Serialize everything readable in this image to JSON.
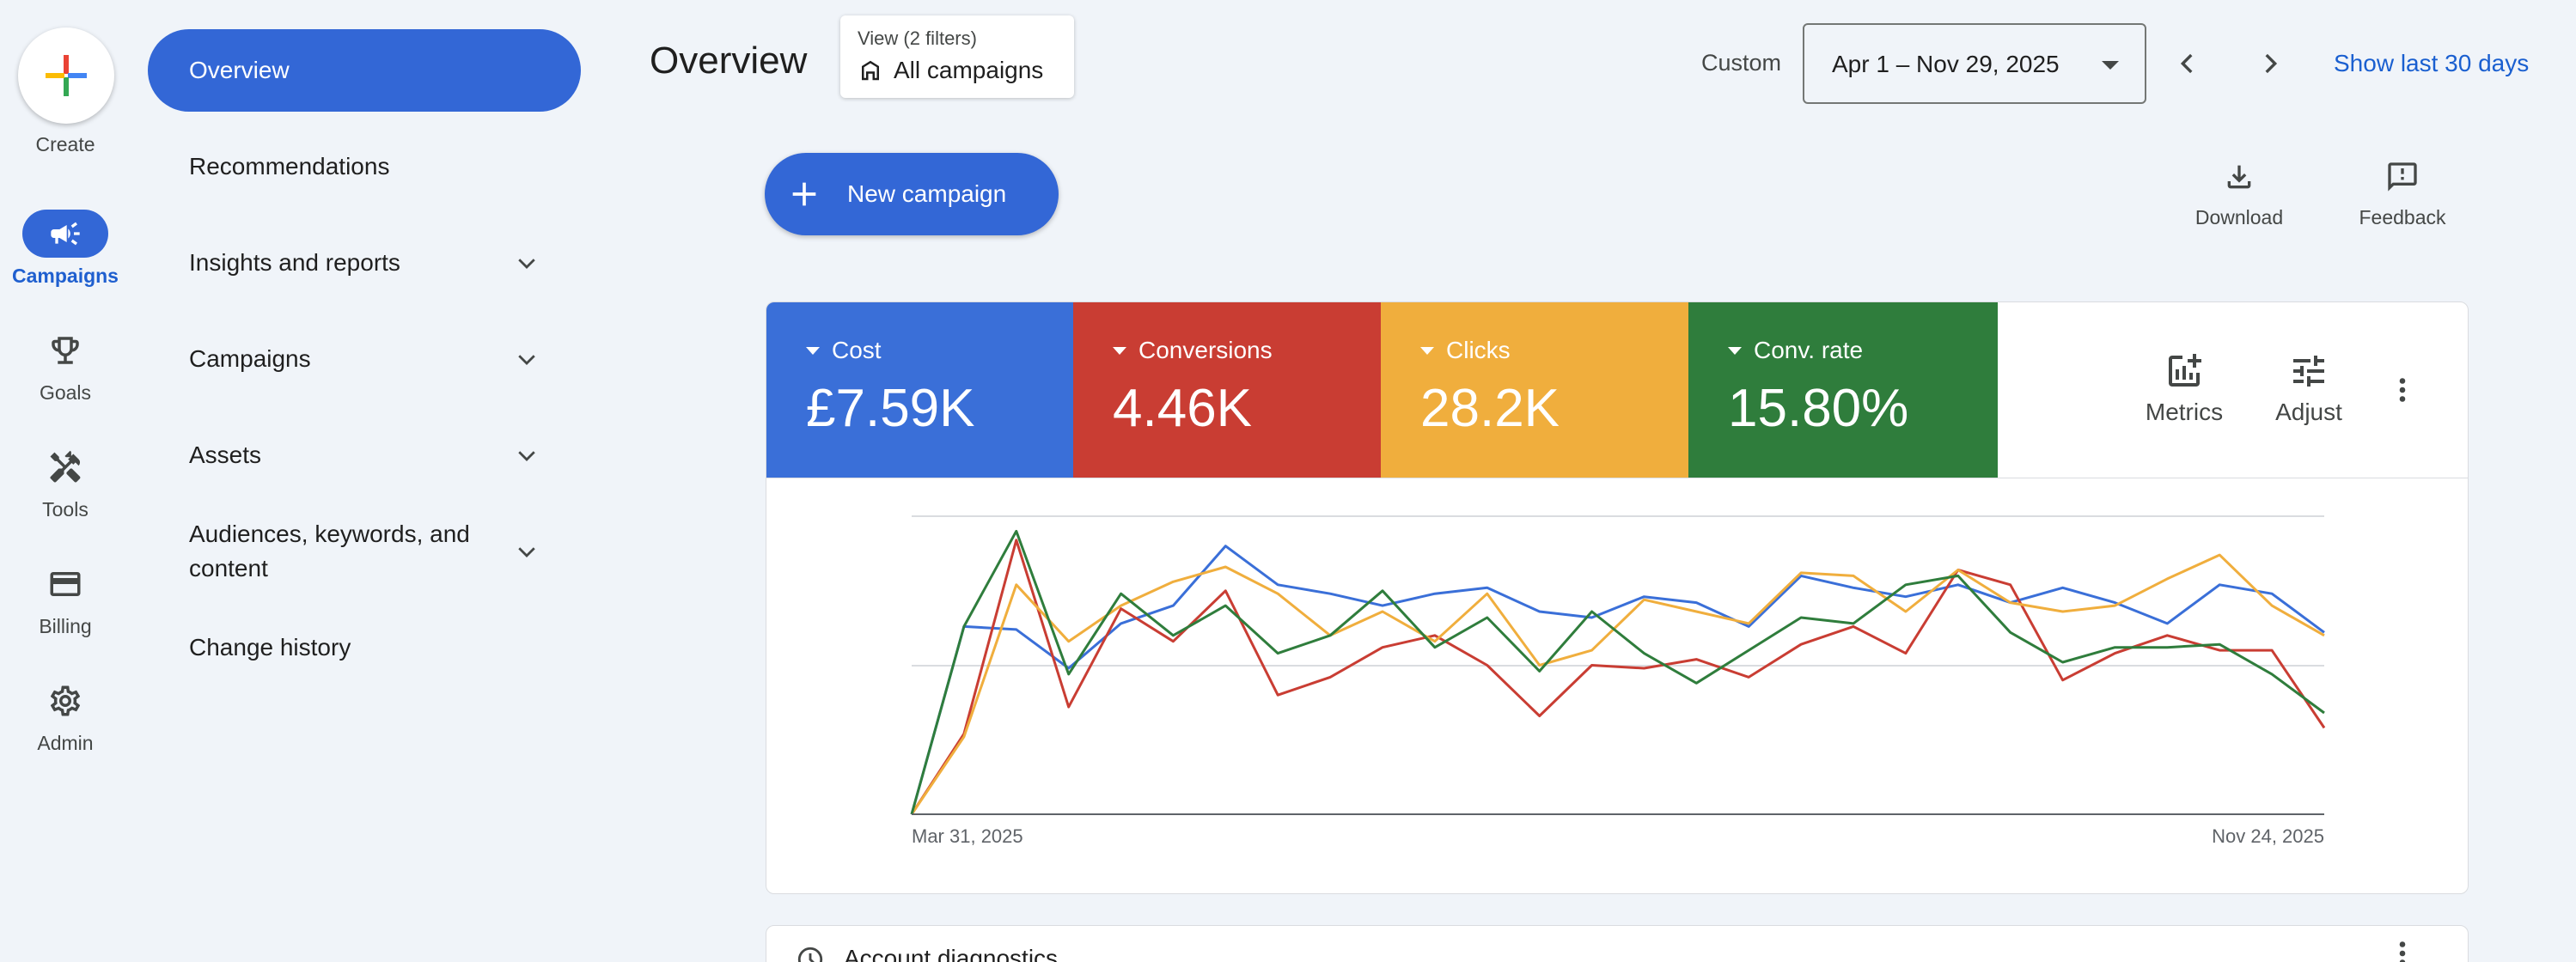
{
  "rail": {
    "create_label": "Create",
    "items": [
      {
        "label": "Campaigns",
        "icon": "megaphone-icon",
        "active": true
      },
      {
        "label": "Goals",
        "icon": "trophy-icon"
      },
      {
        "label": "Tools",
        "icon": "tools-icon"
      },
      {
        "label": "Billing",
        "icon": "credit-card-icon"
      },
      {
        "label": "Admin",
        "icon": "gear-icon"
      }
    ]
  },
  "nav": {
    "items": [
      {
        "label": "Overview",
        "active": true
      },
      {
        "label": "Recommendations"
      },
      {
        "label": "Insights and reports",
        "expandable": true
      },
      {
        "label": "Campaigns",
        "expandable": true
      },
      {
        "label": "Assets",
        "expandable": true
      },
      {
        "label": "Audiences, keywords, and content",
        "expandable": true
      },
      {
        "label": "Change history"
      }
    ]
  },
  "header": {
    "title": "Overview",
    "view_hint": "View (2 filters)",
    "view_value": "All campaigns",
    "custom_label": "Custom",
    "date_range": "Apr 1 – Nov 29, 2025",
    "show_last": "Show last 30 days"
  },
  "actions": {
    "new_campaign": "New campaign",
    "download": "Download",
    "feedback": "Feedback"
  },
  "metrics": [
    {
      "name": "Cost",
      "value": "£7.59K",
      "color": "#3a6fd8"
    },
    {
      "name": "Conversions",
      "value": "4.46K",
      "color": "#c93d33"
    },
    {
      "name": "Clicks",
      "value": "28.2K",
      "color": "#f0ae3d"
    },
    {
      "name": "Conv. rate",
      "value": "15.80%",
      "color": "#2f7d3c"
    }
  ],
  "card_tools": {
    "metrics": "Metrics",
    "adjust": "Adjust"
  },
  "chart_data": {
    "type": "line",
    "x_start_label": "Mar 31, 2025",
    "x_end_label": "Nov 24, 2025",
    "grid": true,
    "ylim": [
      0,
      1
    ],
    "series": [
      {
        "name": "Cost",
        "color": "#3a6fd8",
        "values": [
          0,
          0.63,
          0.62,
          0.49,
          0.64,
          0.7,
          0.9,
          0.77,
          0.74,
          0.7,
          0.74,
          0.76,
          0.68,
          0.66,
          0.73,
          0.71,
          0.63,
          0.8,
          0.76,
          0.73,
          0.77,
          0.71,
          0.76,
          0.71,
          0.64,
          0.77,
          0.74,
          0.61
        ]
      },
      {
        "name": "Conversions",
        "color": "#c93d33",
        "values": [
          0,
          0.27,
          0.92,
          0.36,
          0.69,
          0.58,
          0.75,
          0.4,
          0.46,
          0.56,
          0.6,
          0.5,
          0.33,
          0.5,
          0.49,
          0.52,
          0.46,
          0.57,
          0.63,
          0.54,
          0.82,
          0.77,
          0.45,
          0.54,
          0.6,
          0.55,
          0.55,
          0.29
        ]
      },
      {
        "name": "Clicks",
        "color": "#f0ae3d",
        "values": [
          0,
          0.26,
          0.77,
          0.58,
          0.7,
          0.78,
          0.83,
          0.74,
          0.6,
          0.68,
          0.58,
          0.74,
          0.5,
          0.55,
          0.72,
          0.68,
          0.64,
          0.81,
          0.8,
          0.68,
          0.82,
          0.71,
          0.68,
          0.7,
          0.79,
          0.87,
          0.7,
          0.6
        ]
      },
      {
        "name": "Conv. rate",
        "color": "#2f7d3c",
        "values": [
          0,
          0.63,
          0.95,
          0.47,
          0.74,
          0.6,
          0.7,
          0.54,
          0.6,
          0.75,
          0.56,
          0.66,
          0.48,
          0.68,
          0.54,
          0.44,
          0.55,
          0.66,
          0.64,
          0.77,
          0.8,
          0.61,
          0.51,
          0.56,
          0.56,
          0.57,
          0.47,
          0.34
        ]
      }
    ]
  },
  "diagnostics": {
    "label": "Account diagnostics"
  }
}
